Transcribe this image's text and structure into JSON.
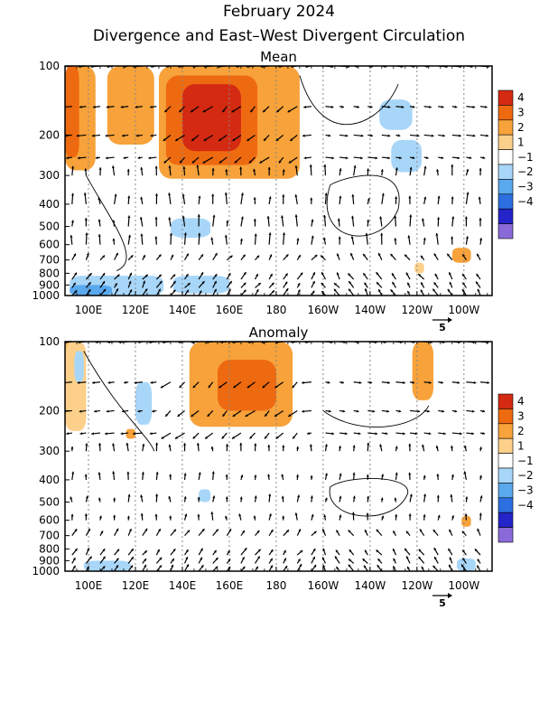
{
  "title": "February 2024",
  "subtitle": "Divergence and East–West Divergent Circulation",
  "chart_data": [
    {
      "type": "heatmap",
      "title": "Mean",
      "x_ticks": [
        "100E",
        "120E",
        "140E",
        "160E",
        "180",
        "160W",
        "140W",
        "120W",
        "100W"
      ],
      "x_tick_values": [
        100,
        120,
        140,
        160,
        180,
        200,
        220,
        240,
        260
      ],
      "xlim": [
        90,
        272
      ],
      "y_ticks": [
        "100",
        "200",
        "300",
        "400",
        "500",
        "600",
        "700",
        "800",
        "900",
        "1000"
      ],
      "y_tick_values": [
        100,
        200,
        300,
        400,
        500,
        600,
        700,
        800,
        900,
        1000
      ],
      "ylim": [
        1000,
        100
      ],
      "y_scale": "log",
      "colorbar": {
        "labels": [
          "4",
          "3",
          "2",
          "1",
          "−1",
          "−2",
          "−3",
          "−4"
        ],
        "colors": [
          "#d42a12",
          "#ee6a10",
          "#f7a23a",
          "#fcd08a",
          "#ffffff",
          "#a8d6f8",
          "#5aa8ee",
          "#2d6fe0",
          "#2424c8",
          "#8a6ad8"
        ]
      },
      "vector_reference": "5",
      "regions": [
        {
          "level": 2,
          "x": [
            90,
            103
          ],
          "y": [
            100,
            285
          ]
        },
        {
          "level": 3,
          "x": [
            90,
            96
          ],
          "y": [
            100,
            250
          ]
        },
        {
          "level": 2,
          "x": [
            108,
            128
          ],
          "y": [
            100,
            220
          ]
        },
        {
          "level": 2,
          "x": [
            130,
            190
          ],
          "y": [
            100,
            310
          ]
        },
        {
          "level": 3,
          "x": [
            133,
            172
          ],
          "y": [
            110,
            270
          ]
        },
        {
          "level": 4,
          "x": [
            140,
            165
          ],
          "y": [
            120,
            235
          ]
        },
        {
          "level": 2,
          "x": [
            172,
            187
          ],
          "y": [
            100,
            140
          ]
        },
        {
          "level": -1,
          "x": [
            224,
            238
          ],
          "y": [
            140,
            190
          ]
        },
        {
          "level": -1,
          "x": [
            229,
            242
          ],
          "y": [
            210,
            290
          ]
        },
        {
          "level": 2,
          "x": [
            255,
            263
          ],
          "y": [
            620,
            720
          ]
        },
        {
          "level": 1,
          "x": [
            239,
            243
          ],
          "y": [
            720,
            800
          ]
        },
        {
          "level": -1,
          "x": [
            135,
            152
          ],
          "y": [
            460,
            560
          ]
        },
        {
          "level": -1,
          "x": [
            92,
            132
          ],
          "y": [
            820,
            1000
          ]
        },
        {
          "level": -2,
          "x": [
            92,
            110
          ],
          "y": [
            900,
            1000
          ]
        },
        {
          "level": -1,
          "x": [
            136,
            160
          ],
          "y": [
            820,
            980
          ]
        }
      ]
    },
    {
      "type": "heatmap",
      "title": "Anomaly",
      "x_ticks": [
        "100E",
        "120E",
        "140E",
        "160E",
        "180",
        "160W",
        "140W",
        "120W",
        "100W"
      ],
      "x_tick_values": [
        100,
        120,
        140,
        160,
        180,
        200,
        220,
        240,
        260
      ],
      "xlim": [
        90,
        272
      ],
      "y_ticks": [
        "100",
        "200",
        "300",
        "400",
        "500",
        "600",
        "700",
        "800",
        "900",
        "1000"
      ],
      "y_tick_values": [
        100,
        200,
        300,
        400,
        500,
        600,
        700,
        800,
        900,
        1000
      ],
      "ylim": [
        1000,
        100
      ],
      "y_scale": "log",
      "colorbar": {
        "labels": [
          "4",
          "3",
          "2",
          "1",
          "−1",
          "−2",
          "−3",
          "−4"
        ],
        "colors": [
          "#d42a12",
          "#ee6a10",
          "#f7a23a",
          "#fcd08a",
          "#ffffff",
          "#a8d6f8",
          "#5aa8ee",
          "#2d6fe0",
          "#2424c8",
          "#8a6ad8"
        ]
      },
      "vector_reference": "5",
      "regions": [
        {
          "level": 2,
          "x": [
            90,
            94
          ],
          "y": [
            100,
            210
          ]
        },
        {
          "level": 1,
          "x": [
            90,
            99
          ],
          "y": [
            100,
            245
          ]
        },
        {
          "level": 2,
          "x": [
            143,
            187
          ],
          "y": [
            100,
            235
          ]
        },
        {
          "level": 3,
          "x": [
            155,
            180
          ],
          "y": [
            120,
            200
          ]
        },
        {
          "level": 2,
          "x": [
            238,
            247
          ],
          "y": [
            100,
            180
          ]
        },
        {
          "level": -1,
          "x": [
            94,
            98
          ],
          "y": [
            110,
            150
          ]
        },
        {
          "level": -1,
          "x": [
            120,
            127
          ],
          "y": [
            150,
            230
          ]
        },
        {
          "level": -1,
          "x": [
            98,
            118
          ],
          "y": [
            900,
            1000
          ]
        },
        {
          "level": 2,
          "x": [
            116,
            120
          ],
          "y": [
            240,
            265
          ]
        },
        {
          "level": 2,
          "x": [
            259,
            263
          ],
          "y": [
            575,
            640
          ]
        },
        {
          "level": -1,
          "x": [
            147,
            152
          ],
          "y": [
            440,
            500
          ]
        },
        {
          "level": -1,
          "x": [
            257,
            265
          ],
          "y": [
            880,
            1000
          ]
        }
      ]
    }
  ]
}
